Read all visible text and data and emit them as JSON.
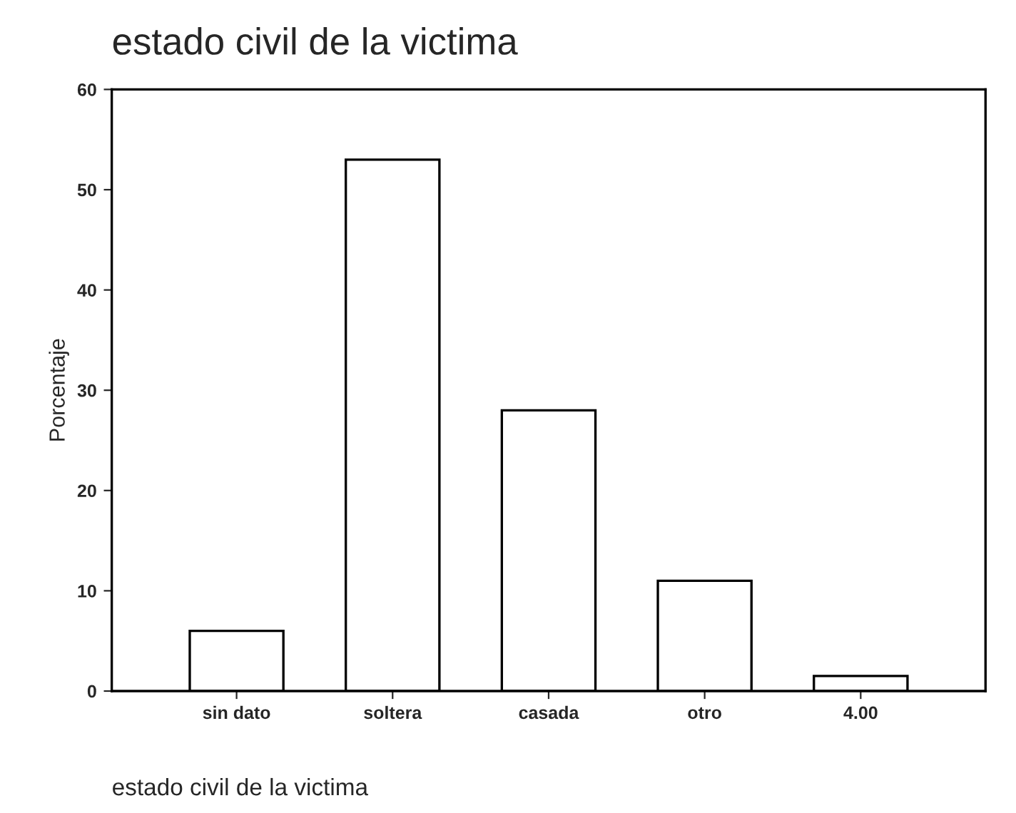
{
  "chart_data": {
    "type": "bar",
    "title": "estado civil de la victima",
    "xlabel": "estado civil de la victima",
    "ylabel": "Porcentaje",
    "categories": [
      "sin dato",
      "soltera",
      "casada",
      "otro",
      "4.00"
    ],
    "values": [
      6,
      53,
      28,
      11,
      1.5
    ],
    "color": "#ffffff",
    "ylim": [
      0,
      60
    ],
    "yticks": [
      0,
      10,
      20,
      30,
      40,
      50,
      60
    ],
    "grid": false
  }
}
